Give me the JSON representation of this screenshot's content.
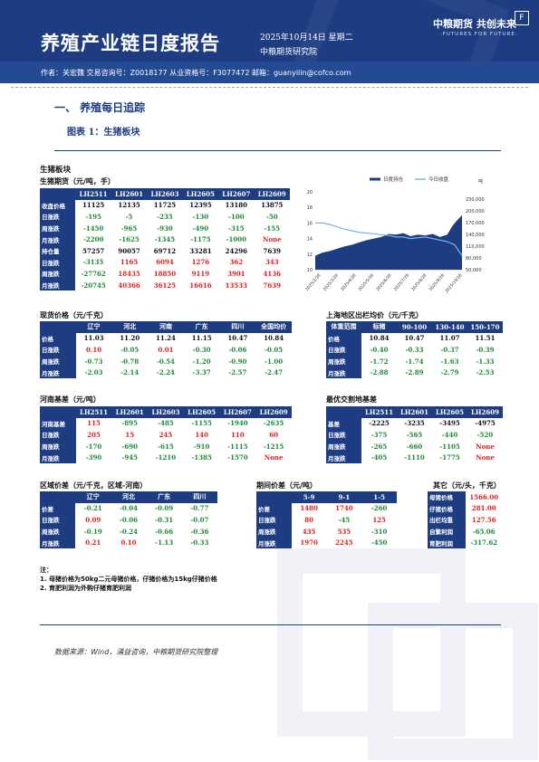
{
  "header": {
    "title": "养殖产业链日度报告",
    "date": "2025年10月14日 星期二",
    "institute": "中粮期货研究院",
    "logo_cn": "中粮期货 共创未来",
    "logo_en": "·FUTURES FOR FUTURE·",
    "authors": "作者：关宏魏   交易咨询号：Z0018177 从业资格号：F3077472   邮箱：guanyilin@cofco.com"
  },
  "section": {
    "title": "一、    养殖每日追踪",
    "figure": "图表 1：生猪板块"
  },
  "block_title": "生猪板块",
  "futures": {
    "title": "生猪期货（元/吨，手）",
    "headers": [
      "",
      "LH2511",
      "LH2601",
      "LH2603",
      "LH2605",
      "LH2607",
      "LH2609"
    ],
    "rows": [
      {
        "label": "收盘价格",
        "cells": [
          "11125",
          "12135",
          "11725",
          "12395",
          "13180",
          "13875"
        ],
        "colors": [
          "k",
          "k",
          "k",
          "k",
          "k",
          "k"
        ]
      },
      {
        "label": "日涨跌",
        "cells": [
          "-195",
          "-5",
          "-235",
          "-130",
          "-100",
          "-50"
        ],
        "colors": [
          "g",
          "g",
          "g",
          "g",
          "g",
          "g"
        ]
      },
      {
        "label": "周涨跌",
        "cells": [
          "-1450",
          "-965",
          "-930",
          "-490",
          "-315",
          "-155"
        ],
        "colors": [
          "g",
          "g",
          "g",
          "g",
          "g",
          "g"
        ]
      },
      {
        "label": "月涨跌",
        "cells": [
          "-2200",
          "-1625",
          "-1345",
          "-1175",
          "-1000",
          "None"
        ],
        "colors": [
          "g",
          "g",
          "g",
          "g",
          "g",
          "r"
        ]
      },
      {
        "label": "持仓量",
        "cells": [
          "57257",
          "90057",
          "69712",
          "33281",
          "24296",
          "7639"
        ],
        "colors": [
          "k",
          "k",
          "k",
          "k",
          "k",
          "k"
        ]
      },
      {
        "label": "日涨跌",
        "cells": [
          "-3135",
          "1165",
          "6094",
          "1276",
          "362",
          "343"
        ],
        "colors": [
          "g",
          "r",
          "r",
          "r",
          "r",
          "r"
        ]
      },
      {
        "label": "周涨跌",
        "cells": [
          "-27762",
          "18435",
          "18850",
          "9119",
          "3901",
          "4136"
        ],
        "colors": [
          "g",
          "r",
          "r",
          "r",
          "r",
          "r"
        ]
      },
      {
        "label": "月涨跌",
        "cells": [
          "-20745",
          "40366",
          "36125",
          "16616",
          "13533",
          "7639"
        ],
        "colors": [
          "g",
          "r",
          "r",
          "r",
          "r",
          "r"
        ]
      }
    ]
  },
  "chart_data": {
    "type": "line",
    "series": [
      {
        "name": "日度持仓",
        "axis": "right"
      },
      {
        "name": "今日收盘",
        "axis": "left"
      }
    ],
    "ylim_left": [
      10,
      20
    ],
    "yticks_left": [
      "20",
      "18",
      "16",
      "14",
      "12",
      "10"
    ],
    "ylim_right": [
      50000,
      250000
    ],
    "yticks_right": [
      "230,000",
      "200,000",
      "170,000",
      "140,000",
      "110,000",
      "80,000",
      "50,000"
    ],
    "right_unit": "吨",
    "x_ticks": [
      "2025/2/28",
      "2025/3/28",
      "2025/4/28",
      "2025/5/28",
      "2025/6/28",
      "2025/7/28",
      "2025/8/28",
      "2025/9/28",
      "2025/10/28"
    ]
  },
  "spot": {
    "title": "现货价格（元/千克）",
    "headers": [
      "",
      "辽宁",
      "河北",
      "河南",
      "广东",
      "四川",
      "全国均价"
    ],
    "rows": [
      {
        "label": "价格",
        "cells": [
          "11.03",
          "11.20",
          "11.24",
          "11.15",
          "10.47",
          "10.84"
        ],
        "colors": [
          "k",
          "k",
          "k",
          "k",
          "k",
          "k"
        ]
      },
      {
        "label": "日涨跌",
        "cells": [
          "0.10",
          "-0.05",
          "0.01",
          "-0.30",
          "-0.06",
          "-0.05"
        ],
        "colors": [
          "r",
          "g",
          "r",
          "g",
          "g",
          "g"
        ]
      },
      {
        "label": "周涨跌",
        "cells": [
          "-0.73",
          "-0.78",
          "-0.54",
          "-1.20",
          "-0.90",
          "-1.00"
        ],
        "colors": [
          "g",
          "g",
          "g",
          "g",
          "g",
          "g"
        ]
      },
      {
        "label": "月涨跌",
        "cells": [
          "-2.03",
          "-2.14",
          "-2.24",
          "-3.37",
          "-2.57",
          "-2.47"
        ],
        "colors": [
          "g",
          "g",
          "g",
          "g",
          "g",
          "g"
        ]
      }
    ]
  },
  "weights": {
    "title": "上海地区出栏均价（元/千克）",
    "headers": [
      "体重范围",
      "标猪",
      "90-100",
      "130-140",
      "150-170"
    ],
    "rows": [
      {
        "label": "价格",
        "cells": [
          "10.84",
          "10.47",
          "11.07",
          "11.51"
        ],
        "colors": [
          "k",
          "k",
          "k",
          "k"
        ]
      },
      {
        "label": "日涨跌",
        "cells": [
          "-0.40",
          "-0.33",
          "-0.37",
          "-0.39"
        ],
        "colors": [
          "g",
          "g",
          "g",
          "g"
        ]
      },
      {
        "label": "周涨跌",
        "cells": [
          "-1.72",
          "-1.74",
          "-1.63",
          "-1.33"
        ],
        "colors": [
          "g",
          "g",
          "g",
          "g"
        ]
      },
      {
        "label": "月涨跌",
        "cells": [
          "-2.88",
          "-2.89",
          "-2.79",
          "-2.53"
        ],
        "colors": [
          "g",
          "g",
          "g",
          "g"
        ]
      }
    ]
  },
  "basis": {
    "title": "河南基差（元/吨）",
    "headers": [
      "",
      "LH2511",
      "LH2601",
      "LH2603",
      "LH2605",
      "LH2607",
      "LH2609"
    ],
    "rows": [
      {
        "label": "河南基差",
        "cells": [
          "115",
          "-895",
          "-485",
          "-1155",
          "-1940",
          "-2635"
        ],
        "colors": [
          "r",
          "g",
          "g",
          "g",
          "g",
          "g"
        ]
      },
      {
        "label": "日涨跌",
        "cells": [
          "205",
          "15",
          "245",
          "140",
          "110",
          "60"
        ],
        "colors": [
          "r",
          "r",
          "r",
          "r",
          "r",
          "r"
        ]
      },
      {
        "label": "周涨跌",
        "cells": [
          "-170",
          "-690",
          "-615",
          "-910",
          "-1115",
          "-1215"
        ],
        "colors": [
          "g",
          "g",
          "g",
          "g",
          "g",
          "g"
        ]
      },
      {
        "label": "月涨跌",
        "cells": [
          "-390",
          "-945",
          "-1210",
          "-1385",
          "-1570",
          "None"
        ],
        "colors": [
          "g",
          "g",
          "g",
          "g",
          "g",
          "r"
        ]
      }
    ]
  },
  "delivery_basis": {
    "title": "最优交割地基差",
    "headers": [
      "",
      "LH2511",
      "LH2601",
      "LH2605",
      "LH2609"
    ],
    "rows": [
      {
        "label": "基差",
        "cells": [
          "-2225",
          "-3235",
          "-3495",
          "-4975"
        ],
        "colors": [
          "k",
          "k",
          "k",
          "k"
        ]
      },
      {
        "label": "日涨跌",
        "cells": [
          "-375",
          "-565",
          "-440",
          "-520"
        ],
        "colors": [
          "g",
          "g",
          "g",
          "g"
        ]
      },
      {
        "label": "周涨跌",
        "cells": [
          "-265",
          "-660",
          "-1105",
          "None"
        ],
        "colors": [
          "g",
          "g",
          "g",
          "r"
        ]
      },
      {
        "label": "月涨跌",
        "cells": [
          "-405",
          "-1110",
          "-1775",
          "None"
        ],
        "colors": [
          "g",
          "g",
          "g",
          "r"
        ]
      }
    ]
  },
  "regional": {
    "title": "区域价差（元/千克，区域-河南）",
    "headers": [
      "",
      "辽宁",
      "河北",
      "广东",
      "四川"
    ],
    "rows": [
      {
        "label": "价差",
        "cells": [
          "-0.21",
          "-0.04",
          "-0.09",
          "-0.77"
        ],
        "colors": [
          "g",
          "g",
          "g",
          "g"
        ]
      },
      {
        "label": "日涨跌",
        "cells": [
          "0.09",
          "-0.06",
          "-0.31",
          "-0.07"
        ],
        "colors": [
          "r",
          "g",
          "g",
          "g"
        ]
      },
      {
        "label": "周涨跌",
        "cells": [
          "-0.19",
          "-0.24",
          "-0.66",
          "-0.36"
        ],
        "colors": [
          "g",
          "g",
          "g",
          "g"
        ]
      },
      {
        "label": "月涨跌",
        "cells": [
          "0.21",
          "0.10",
          "-1.13",
          "-0.33"
        ],
        "colors": [
          "r",
          "r",
          "g",
          "g"
        ]
      }
    ]
  },
  "spread": {
    "title": "期间价差（元/吨）",
    "headers": [
      "",
      "5-9",
      "9-1",
      "1-5"
    ],
    "rows": [
      {
        "label": "价差",
        "cells": [
          "1480",
          "1740",
          "-260"
        ],
        "colors": [
          "r",
          "r",
          "g"
        ]
      },
      {
        "label": "日涨跌",
        "cells": [
          "80",
          "-45",
          "125"
        ],
        "colors": [
          "r",
          "g",
          "r"
        ]
      },
      {
        "label": "周涨跌",
        "cells": [
          "435",
          "535",
          "-310"
        ],
        "colors": [
          "r",
          "r",
          "g"
        ]
      },
      {
        "label": "月涨跌",
        "cells": [
          "1970",
          "2245",
          "-450"
        ],
        "colors": [
          "r",
          "r",
          "g"
        ]
      }
    ]
  },
  "others": {
    "title": "其它（元/头，千克）",
    "rows": [
      {
        "label": "母猪价格",
        "value": "1566.00",
        "color": "r"
      },
      {
        "label": "仔猪价格",
        "value": "281.00",
        "color": "r"
      },
      {
        "label": "出栏均重",
        "value": "127.56",
        "color": "r"
      },
      {
        "label": "自繁利润",
        "value": "-65.06",
        "color": "g"
      },
      {
        "label": "育肥利润",
        "value": "-317.62",
        "color": "g"
      }
    ]
  },
  "notes": {
    "title": "注：",
    "line1": "1. 母猪价格为50kg二元母猪价格，仔猪价格为15kg仔猪价格",
    "line2": "2. 育肥利润为外购仔猪育肥利润"
  },
  "source": "数据来源：Wind，涌益咨询，中粮期货研究院整理"
}
